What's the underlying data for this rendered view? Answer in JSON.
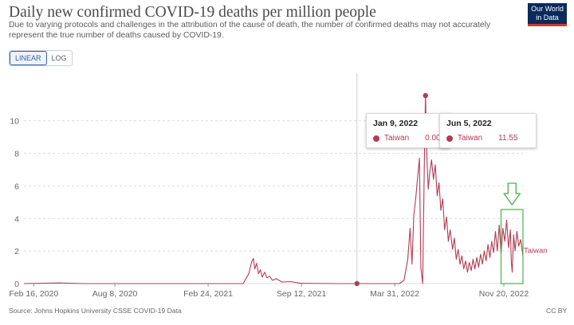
{
  "title": "Daily new confirmed COVID-19 deaths per million people",
  "subtitle": "Due to varying protocols and challenges in the attribution of the cause of death, the number of confirmed deaths may not accurately represent the true number of deaths caused by COVID-19.",
  "logo": {
    "line1": "Our World",
    "line2": "in Data"
  },
  "scale_toggle": {
    "linear": "LINEAR",
    "log": "LOG",
    "active": "LINEAR"
  },
  "tooltips": [
    {
      "date": "Jan 9, 2022",
      "country": "Taiwan",
      "value": "0.00"
    },
    {
      "date": "Jun 5, 2022",
      "country": "Taiwan",
      "value": "11.55"
    }
  ],
  "footer": {
    "source": "Source: Johns Hopkins University CSSE COVID-19 Data",
    "license": "CC BY"
  },
  "colors": {
    "series": "#b13c55",
    "annotation": "#4caf50",
    "grid": "#dddddd"
  },
  "chart_data": {
    "type": "line",
    "title": "Daily new confirmed COVID-19 deaths per million people",
    "xlabel": "",
    "ylabel": "",
    "ylim": [
      0,
      11.55
    ],
    "yticks": [
      0,
      2,
      4,
      6,
      8,
      10
    ],
    "xticks": [
      "Feb 16, 2020",
      "Aug 8, 2020",
      "Feb 24, 2021",
      "Sep 12, 2021",
      "Mar 31, 2022",
      "Nov 20, 2022"
    ],
    "x_range": [
      "2020-01-26",
      "2022-12-31"
    ],
    "grid": "horizontal dashed",
    "legend": "inline label at end of line",
    "series": [
      {
        "name": "Taiwan",
        "points": [
          [
            "2020-01-26",
            0
          ],
          [
            "2020-04-10",
            0.04
          ],
          [
            "2020-06-01",
            0
          ],
          [
            "2021-01-01",
            0
          ],
          [
            "2021-05-10",
            0
          ],
          [
            "2021-05-22",
            0.6
          ],
          [
            "2021-05-28",
            1.3
          ],
          [
            "2021-06-01",
            1.55
          ],
          [
            "2021-06-04",
            0.9
          ],
          [
            "2021-06-08",
            1.25
          ],
          [
            "2021-06-12",
            0.6
          ],
          [
            "2021-06-16",
            0.85
          ],
          [
            "2021-06-20",
            0.4
          ],
          [
            "2021-06-25",
            0.7
          ],
          [
            "2021-06-30",
            0.35
          ],
          [
            "2021-07-06",
            0.45
          ],
          [
            "2021-07-12",
            0.2
          ],
          [
            "2021-07-20",
            0.3
          ],
          [
            "2021-08-01",
            0.1
          ],
          [
            "2021-08-20",
            0.12
          ],
          [
            "2021-09-10",
            0.02
          ],
          [
            "2021-12-01",
            0
          ],
          [
            "2022-01-09",
            0
          ],
          [
            "2022-03-01",
            0
          ],
          [
            "2022-04-10",
            0
          ],
          [
            "2022-04-20",
            0.2
          ],
          [
            "2022-04-28",
            1.5
          ],
          [
            "2022-05-03",
            3.4
          ],
          [
            "2022-05-07",
            1.2
          ],
          [
            "2022-05-11",
            4.2
          ],
          [
            "2022-05-15",
            5.2
          ],
          [
            "2022-05-19",
            6.5
          ],
          [
            "2022-05-23",
            7.7
          ],
          [
            "2022-05-26",
            1.0
          ],
          [
            "2022-05-30",
            0
          ],
          [
            "2022-06-03",
            8.5
          ],
          [
            "2022-06-05",
            11.55
          ],
          [
            "2022-06-08",
            7.8
          ],
          [
            "2022-06-11",
            5.8
          ],
          [
            "2022-06-14",
            6.8
          ],
          [
            "2022-06-18",
            7.6
          ],
          [
            "2022-06-22",
            6.4
          ],
          [
            "2022-06-26",
            7.3
          ],
          [
            "2022-06-30",
            5.4
          ],
          [
            "2022-07-04",
            6.2
          ],
          [
            "2022-07-08",
            4.5
          ],
          [
            "2022-07-12",
            5.2
          ],
          [
            "2022-07-16",
            3.3
          ],
          [
            "2022-07-20",
            4.1
          ],
          [
            "2022-07-24",
            2.6
          ],
          [
            "2022-07-28",
            3.3
          ],
          [
            "2022-08-02",
            2.1
          ],
          [
            "2022-08-06",
            2.8
          ],
          [
            "2022-08-10",
            1.5
          ],
          [
            "2022-08-14",
            2.1
          ],
          [
            "2022-08-18",
            1.2
          ],
          [
            "2022-08-22",
            1.7
          ],
          [
            "2022-08-26",
            0.9
          ],
          [
            "2022-08-30",
            1.4
          ],
          [
            "2022-09-03",
            0.7
          ],
          [
            "2022-09-07",
            1.3
          ],
          [
            "2022-09-11",
            0.8
          ],
          [
            "2022-09-15",
            1.5
          ],
          [
            "2022-09-19",
            0.9
          ],
          [
            "2022-09-23",
            1.6
          ],
          [
            "2022-09-27",
            1.0
          ],
          [
            "2022-10-01",
            1.8
          ],
          [
            "2022-10-05",
            1.2
          ],
          [
            "2022-10-09",
            2.0
          ],
          [
            "2022-10-13",
            1.4
          ],
          [
            "2022-10-17",
            2.4
          ],
          [
            "2022-10-21",
            1.6
          ],
          [
            "2022-10-25",
            2.6
          ],
          [
            "2022-10-29",
            1.9
          ],
          [
            "2022-11-02",
            3.2
          ],
          [
            "2022-11-06",
            2.0
          ],
          [
            "2022-11-10",
            3.6
          ],
          [
            "2022-11-14",
            1.8
          ],
          [
            "2022-11-18",
            3.4
          ],
          [
            "2022-11-22",
            2.6
          ],
          [
            "2022-11-26",
            3.9
          ],
          [
            "2022-11-30",
            2.2
          ],
          [
            "2022-12-04",
            3.3
          ],
          [
            "2022-12-06",
            1.3
          ],
          [
            "2022-12-08",
            0.7
          ],
          [
            "2022-12-11",
            3.0
          ],
          [
            "2022-12-14",
            2.0
          ],
          [
            "2022-12-18",
            3.2
          ],
          [
            "2022-12-22",
            2.3
          ],
          [
            "2022-12-26",
            2.7
          ],
          [
            "2022-12-31",
            1.7
          ]
        ]
      }
    ],
    "highlighted_points": [
      {
        "date": "2022-01-09",
        "value": 0.0
      },
      {
        "date": "2022-06-05",
        "value": 11.55
      }
    ],
    "annotations": [
      {
        "type": "box-with-arrow",
        "from": "2022-11-14",
        "to": "2022-12-31",
        "color": "#4caf50"
      }
    ]
  }
}
